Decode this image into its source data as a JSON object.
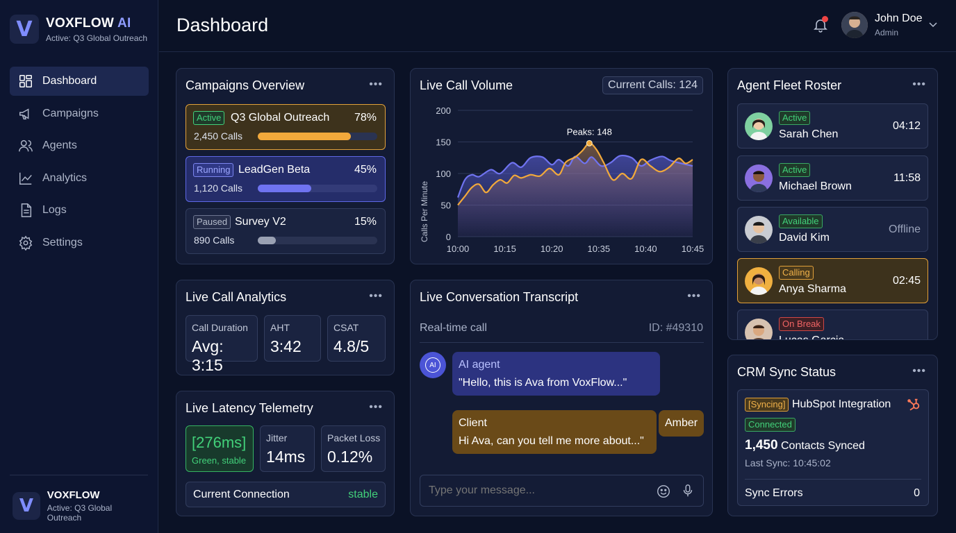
{
  "brand": {
    "name": "VOXFLOW",
    "ai": "AI",
    "subtitle": "Active: Q3 Global Outreach",
    "footer_name": "VOXFLOW",
    "footer_subtitle": "Active: Q3 Global Outreach",
    "logo_letter": "V"
  },
  "nav": [
    {
      "label": "Dashboard",
      "icon": "grid-icon",
      "active": true
    },
    {
      "label": "Campaigns",
      "icon": "megaphone-icon"
    },
    {
      "label": "Agents",
      "icon": "users-icon"
    },
    {
      "label": "Analytics",
      "icon": "chart-line-icon"
    },
    {
      "label": "Logs",
      "icon": "document-icon"
    },
    {
      "label": "Settings",
      "icon": "gear-icon"
    }
  ],
  "header": {
    "title": "Dashboard",
    "user_name": "John Doe",
    "user_role": "Admin"
  },
  "campaigns": {
    "title": "Campaigns Overview",
    "items": [
      {
        "status": "Active",
        "name": "Q3 Global Outreach",
        "pct": "78%",
        "progress": 0.78,
        "calls": "2,450 Calls"
      },
      {
        "status": "Running",
        "name": "LeadGen Beta",
        "pct": "45%",
        "progress": 0.45,
        "calls": "1,120 Calls"
      },
      {
        "status": "Paused",
        "name": "Survey V2",
        "pct": "15%",
        "progress": 0.15,
        "calls": "890 Calls"
      }
    ]
  },
  "volume": {
    "title": "Live Call Volume",
    "current": "Current Calls: 124",
    "peak_label": "Peaks: 148"
  },
  "chart_data": {
    "type": "area",
    "title": "Live Call Volume",
    "ylabel": "Calls Per Minute",
    "xlabel": "",
    "ylim": [
      0,
      200
    ],
    "y_ticks": [
      "0",
      "50",
      "100",
      "150",
      "200"
    ],
    "x_ticks": [
      "10:00",
      "10:15",
      "10:20",
      "10:35",
      "10:40",
      "10:45"
    ],
    "grid": true,
    "annotation": {
      "text": "Peaks: 148",
      "x": 10.35,
      "y": 148
    },
    "series": [
      {
        "color": "#6f73f0",
        "values": [
          [
            0,
            62
          ],
          [
            3,
            90
          ],
          [
            6,
            98
          ],
          [
            9,
            95
          ],
          [
            14,
            106
          ],
          [
            18,
            100
          ],
          [
            23,
            117
          ],
          [
            27,
            110
          ],
          [
            31,
            125
          ],
          [
            36,
            126
          ],
          [
            40,
            114
          ],
          [
            43,
            122
          ],
          [
            47,
            112
          ],
          [
            50,
            127
          ],
          [
            54,
            116
          ],
          [
            57,
            126
          ],
          [
            61,
            112
          ],
          [
            65,
            117
          ],
          [
            69,
            128
          ],
          [
            74,
            125
          ],
          [
            78,
            112
          ],
          [
            82,
            121
          ],
          [
            87,
            127
          ],
          [
            91,
            120
          ],
          [
            100,
            112
          ]
        ]
      },
      {
        "color": "#f2a93b",
        "values": [
          [
            0,
            50
          ],
          [
            3,
            64
          ],
          [
            6,
            78
          ],
          [
            9,
            83
          ],
          [
            12,
            70
          ],
          [
            15,
            82
          ],
          [
            18,
            90
          ],
          [
            21,
            85
          ],
          [
            24,
            97
          ],
          [
            27,
            93
          ],
          [
            31,
            98
          ],
          [
            35,
            96
          ],
          [
            39,
            108
          ],
          [
            43,
            98
          ],
          [
            46,
            118
          ],
          [
            50,
            126
          ],
          [
            53,
            136
          ],
          [
            56,
            148
          ],
          [
            59,
            138
          ],
          [
            62,
            118
          ],
          [
            66,
            90
          ],
          [
            70,
            100
          ],
          [
            74,
            92
          ],
          [
            78,
            122
          ],
          [
            82,
            112
          ],
          [
            86,
            103
          ],
          [
            90,
            110
          ],
          [
            94,
            124
          ],
          [
            97,
            116
          ],
          [
            100,
            122
          ]
        ]
      }
    ]
  },
  "agents": {
    "title": "Agent Fleet Roster",
    "items": [
      {
        "status": "Active",
        "name": "Sarah Chen",
        "time": "04:12"
      },
      {
        "status": "Active",
        "name": "Michael Brown",
        "time": "11:58"
      },
      {
        "status": "Available",
        "name": "David Kim",
        "time": "Offline"
      },
      {
        "status": "Calling",
        "name": "Anya Sharma",
        "time": "02:45"
      },
      {
        "status": "On Break",
        "name": "Lucas Garcia",
        "time": ""
      }
    ]
  },
  "analytics": {
    "title": "Live Call Analytics",
    "metrics": [
      {
        "label": "Call Duration",
        "value": "Avg: 3:15"
      },
      {
        "label": "AHT",
        "value": "3:42"
      },
      {
        "label": "CSAT",
        "value": "4.8/5"
      }
    ]
  },
  "latency": {
    "title": "Live Latency Telemetry",
    "ms": "[276ms]",
    "ms_sub": "Green, stable",
    "jitter_label": "Jitter",
    "jitter": "14ms",
    "loss_label": "Packet Loss",
    "loss": "0.12%",
    "connection_label": "Current Connection",
    "connection": "stable"
  },
  "transcript": {
    "title": "Live Conversation Transcript",
    "subtitle": "Real-time call",
    "id": "ID: #49310",
    "ai_icon": "AI",
    "ai_name": "AI agent",
    "ai_msg": "\"Hello, this is Ava from VoxFlow...\"",
    "client_name": "Client",
    "client_msg": "Hi Ava, can you tell me more about...\"",
    "client_tag": "Amber",
    "placeholder": "Type your message..."
  },
  "crm": {
    "title": "CRM Sync Status",
    "syncing": "[Syncing]",
    "integration": "HubSpot Integration",
    "connected": "Connected",
    "contacts_num": "1,450",
    "contacts_label": "Contacts Synced",
    "last_sync": "Last Sync: 10:45:02",
    "errors_label": "Sync Errors",
    "errors": "0"
  },
  "colors": {
    "accent": "#6f73f0",
    "amber": "#f2a93b",
    "green": "#3ecf6e",
    "red": "#ef4444",
    "bg": "#0b1226",
    "card": "#131b34"
  }
}
